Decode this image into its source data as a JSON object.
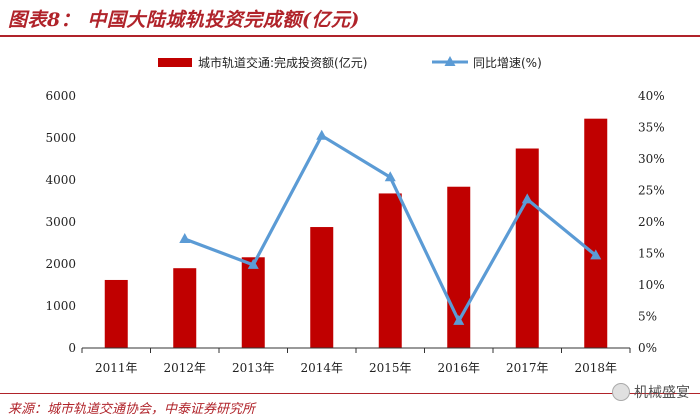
{
  "header": {
    "title": "图表8：  中国大陆城轨投资完成额(亿元)"
  },
  "footer": {
    "source": "来源：城市轨道交通协会，中泰证券研究所",
    "watermark": "机械盛宴",
    "watermark_icon": "wechat-icon"
  },
  "colors": {
    "bar": "#c00000",
    "line": "#5b9bd5",
    "accent": "#b0232a"
  },
  "chart_data": {
    "type": "bar",
    "categories": [
      "2011年",
      "2012年",
      "2013年",
      "2014年",
      "2015年",
      "2016年",
      "2017年",
      "2018年"
    ],
    "series": [
      {
        "name": "城市轨道交通:完成投资额(亿元)",
        "type": "bar",
        "axis": "left",
        "values": [
          1620,
          1900,
          2160,
          2880,
          3680,
          3840,
          4750,
          5460
        ]
      },
      {
        "name": "同比增速(%)",
        "type": "line",
        "axis": "right",
        "marker": "triangle",
        "values": [
          null,
          17.3,
          13.2,
          33.7,
          27.1,
          4.3,
          23.6,
          14.7
        ]
      }
    ],
    "left_axis": {
      "ylim": [
        0,
        6000
      ],
      "ticks": [
        "0",
        "1000",
        "2000",
        "3000",
        "4000",
        "5000",
        "6000"
      ]
    },
    "right_axis": {
      "ylim": [
        0,
        40
      ],
      "ticks": [
        "0%",
        "5%",
        "10%",
        "15%",
        "20%",
        "25%",
        "30%",
        "35%",
        "40%"
      ]
    },
    "legend": "top",
    "grid": false
  }
}
